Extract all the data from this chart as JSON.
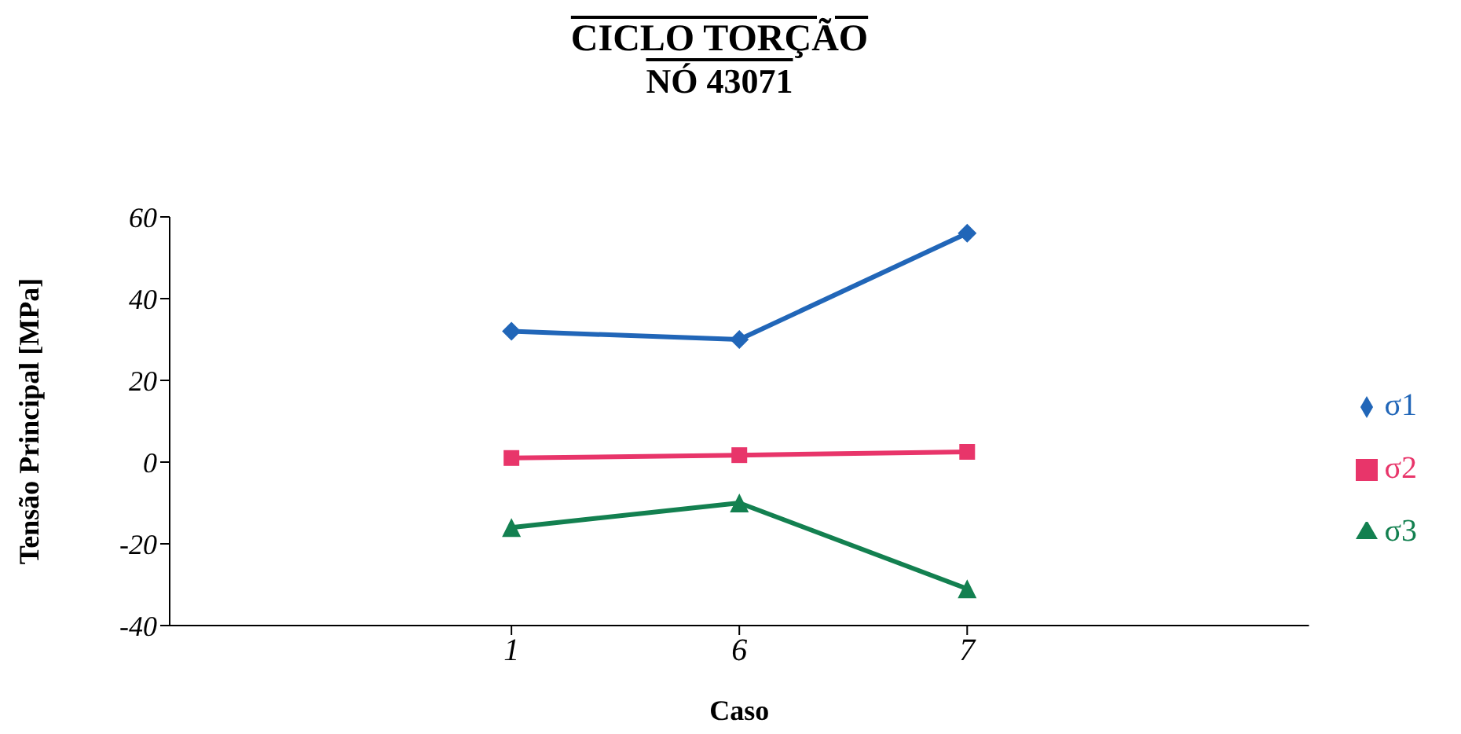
{
  "chart_data": {
    "type": "line",
    "title": "CICLO TORÇÃO",
    "subtitle": "NÓ 43071",
    "xlabel": "Caso",
    "ylabel": "Tensão Principal [MPa]",
    "categories": [
      "1",
      "6",
      "7"
    ],
    "series": [
      {
        "name": "σ1",
        "color": "#2166b8",
        "marker": "diamond",
        "values": [
          32,
          30,
          56
        ]
      },
      {
        "name": "σ2",
        "color": "#e8356a",
        "marker": "square",
        "values": [
          1,
          1.7,
          2.5
        ]
      },
      {
        "name": "σ3",
        "color": "#138050",
        "marker": "triangle",
        "values": [
          -16,
          -10,
          -31
        ]
      }
    ],
    "ylim": [
      -40,
      60
    ],
    "yticks": [
      -40,
      -20,
      0,
      20,
      40,
      60
    ],
    "grid": false,
    "legend": "right"
  }
}
